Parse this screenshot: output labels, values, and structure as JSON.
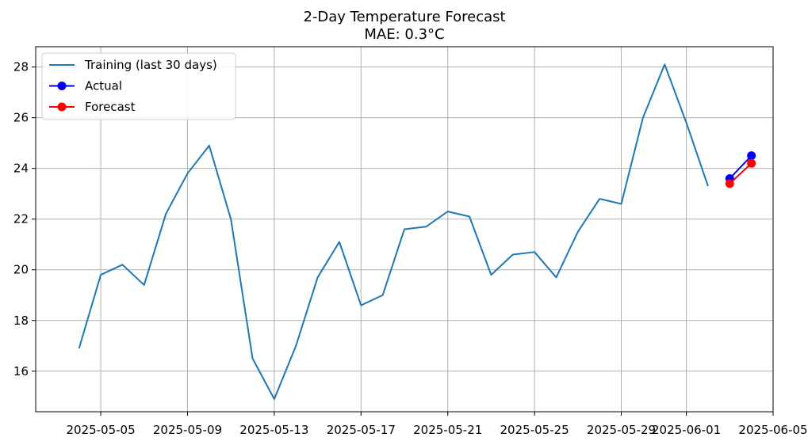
{
  "chart_data": {
    "type": "line",
    "title": "2-Day Temperature Forecast",
    "subtitle": "MAE: 0.3°C",
    "xlabel": "",
    "ylabel": "",
    "ylim": [
      14.4,
      28.8
    ],
    "xlim": [
      "2025-05-02",
      "2025-06-05"
    ],
    "grid": true,
    "legend_position": "top-left",
    "x_ticks": [
      "2025-05-05",
      "2025-05-09",
      "2025-05-13",
      "2025-05-17",
      "2025-05-21",
      "2025-05-25",
      "2025-05-29",
      "2025-06-01",
      "2025-06-05"
    ],
    "y_ticks": [
      16,
      18,
      20,
      22,
      24,
      26,
      28
    ],
    "series": [
      {
        "name": "Training (last 30 days)",
        "color": "#1f77b4",
        "marker": "none",
        "x": [
          "2025-05-04",
          "2025-05-05",
          "2025-05-06",
          "2025-05-07",
          "2025-05-08",
          "2025-05-09",
          "2025-05-10",
          "2025-05-11",
          "2025-05-12",
          "2025-05-13",
          "2025-05-14",
          "2025-05-15",
          "2025-05-16",
          "2025-05-17",
          "2025-05-18",
          "2025-05-19",
          "2025-05-20",
          "2025-05-21",
          "2025-05-22",
          "2025-05-23",
          "2025-05-24",
          "2025-05-25",
          "2025-05-26",
          "2025-05-27",
          "2025-05-28",
          "2025-05-29",
          "2025-05-30",
          "2025-05-31",
          "2025-06-01",
          "2025-06-02"
        ],
        "values": [
          16.9,
          19.8,
          20.2,
          19.4,
          22.2,
          23.8,
          24.9,
          22.0,
          16.5,
          14.9,
          17.0,
          19.7,
          21.1,
          18.6,
          19.0,
          21.6,
          21.7,
          22.3,
          22.1,
          19.8,
          20.6,
          20.7,
          19.7,
          21.5,
          22.8,
          22.6,
          26.0,
          28.1,
          25.8,
          23.3
        ]
      },
      {
        "name": "Actual",
        "color": "#0000ff",
        "marker": "circle",
        "x": [
          "2025-06-03",
          "2025-06-04"
        ],
        "values": [
          23.6,
          24.5
        ]
      },
      {
        "name": "Forecast",
        "color": "#ff0000",
        "marker": "circle",
        "x": [
          "2025-06-03",
          "2025-06-04"
        ],
        "values": [
          23.4,
          24.2
        ]
      }
    ]
  }
}
